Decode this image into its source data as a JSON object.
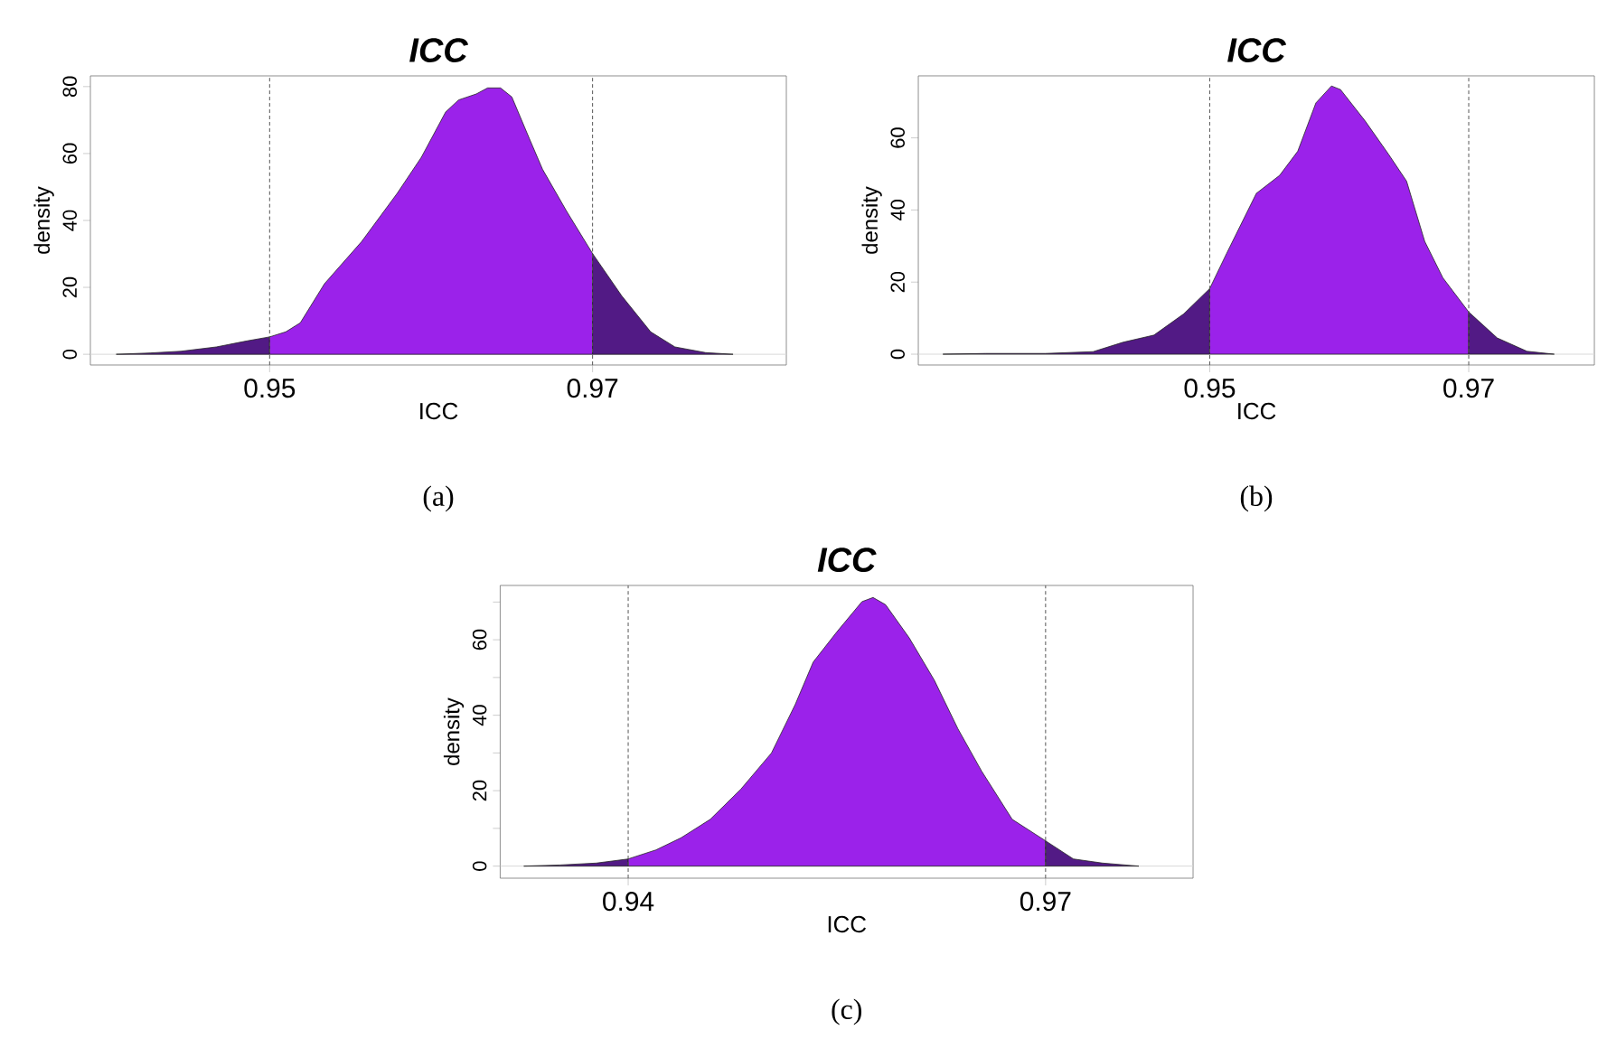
{
  "chart_data": [
    {
      "type": "area",
      "title": "ICC",
      "xlabel": "ICC",
      "ylabel": "density",
      "xlim": [
        0.9389,
        0.982
      ],
      "ylim": [
        -3.2,
        83.2
      ],
      "xticks": [
        0.95,
        0.97
      ],
      "yticks": [
        0,
        20,
        40,
        60,
        80
      ],
      "series": [
        {
          "color": "#521a85",
          "x": [
            0.9405,
            0.9426,
            0.9445,
            0.9467,
            0.9486,
            0.95
          ],
          "values": [
            0,
            0.4,
            0.9,
            2.2,
            4.0,
            5.2
          ]
        },
        {
          "color": "#9b22ea",
          "x": [
            0.95,
            0.951,
            0.9519,
            0.9534,
            0.9557,
            0.9579,
            0.9594,
            0.9609,
            0.9617,
            0.9628,
            0.9635,
            0.9643,
            0.965,
            0.9661,
            0.9669,
            0.9684,
            0.97
          ],
          "values": [
            5.2,
            6.7,
            9.4,
            21.1,
            33.7,
            48.1,
            58.9,
            72.4,
            76.0,
            77.8,
            79.6,
            79.6,
            76.9,
            64.3,
            55.3,
            42.7,
            30.1
          ]
        },
        {
          "color": "#521a85",
          "x": [
            0.97,
            0.9718,
            0.9736,
            0.9751,
            0.977,
            0.9787
          ],
          "values": [
            30.1,
            17.5,
            6.7,
            2.2,
            0.5,
            0
          ]
        }
      ],
      "ref_lines": [
        {
          "axis": "y",
          "value": 0,
          "color": "#d9d9d9"
        },
        {
          "axis": "x",
          "value": 0.95,
          "color": "#555555",
          "line_style": "dashed"
        },
        {
          "axis": "x",
          "value": 0.97,
          "color": "#555555",
          "line_style": "dashed"
        }
      ],
      "annotations": [
        "(a)"
      ]
    },
    {
      "type": "area",
      "title": "ICC",
      "xlabel": "ICC",
      "ylabel": "density",
      "xlim": [
        0.9275,
        0.9797
      ],
      "ylim": [
        -3.0,
        77.2
      ],
      "xticks": [
        0.95,
        0.97
      ],
      "yticks": [
        0,
        20,
        40,
        60
      ],
      "series": [
        {
          "color": "#521a85",
          "x": [
            0.9294,
            0.9327,
            0.9373,
            0.941,
            0.9433,
            0.9457,
            0.948,
            0.95
          ],
          "values": [
            0,
            0.2,
            0.2,
            0.7,
            3.3,
            5.3,
            11.2,
            18.2
          ]
        },
        {
          "color": "#9b22ea",
          "x": [
            0.95,
            0.9513,
            0.9536,
            0.9554,
            0.9568,
            0.9582,
            0.9594,
            0.9601,
            0.962,
            0.9638,
            0.9652,
            0.9666,
            0.968,
            0.97
          ],
          "values": [
            18.2,
            27.9,
            44.6,
            49.6,
            56.3,
            69.7,
            74.4,
            73.4,
            64.7,
            55.5,
            48.0,
            31.3,
            21.2,
            11.7
          ]
        },
        {
          "color": "#521a85",
          "x": [
            0.97,
            0.9722,
            0.9745,
            0.9766
          ],
          "values": [
            11.7,
            4.5,
            0.8,
            0
          ]
        }
      ],
      "ref_lines": [
        {
          "axis": "y",
          "value": 0,
          "color": "#d9d9d9"
        },
        {
          "axis": "x",
          "value": 0.95,
          "color": "#555555",
          "line_style": "dashed"
        },
        {
          "axis": "x",
          "value": 0.97,
          "color": "#555555",
          "line_style": "dashed"
        }
      ],
      "annotations": [
        "(b)"
      ]
    },
    {
      "type": "area",
      "title": "ICC",
      "xlabel": "ICC",
      "ylabel": "density",
      "xlim": [
        0.9308,
        0.9806
      ],
      "ylim": [
        -3.2,
        74.4
      ],
      "xticks": [
        0.94,
        0.97
      ],
      "yticks": [
        0,
        {
          "value": 10,
          "label": null
        },
        20,
        {
          "value": 30,
          "label": null
        },
        40,
        {
          "value": 50,
          "label": null
        },
        60,
        {
          "value": 70,
          "label": null
        }
      ],
      "series": [
        {
          "color": "#521a85",
          "x": [
            0.9325,
            0.9351,
            0.9377,
            0.94
          ],
          "values": [
            0,
            0.3,
            0.8,
            1.9
          ]
        },
        {
          "color": "#9b22ea",
          "x": [
            0.94,
            0.942,
            0.9438,
            0.9459,
            0.9481,
            0.9503,
            0.952,
            0.9533,
            0.955,
            0.9568,
            0.9576,
            0.9585,
            0.9602,
            0.962,
            0.9637,
            0.9654,
            0.9676,
            0.97
          ],
          "values": [
            1.9,
            4.3,
            7.5,
            12.4,
            20.4,
            30.0,
            42.8,
            54.1,
            62.1,
            70.1,
            71.2,
            69.3,
            60.5,
            49.3,
            36.4,
            25.2,
            12.4,
            6.7
          ]
        },
        {
          "color": "#521a85",
          "x": [
            0.97,
            0.972,
            0.9741,
            0.9767
          ],
          "values": [
            6.7,
            1.9,
            0.8,
            0
          ]
        }
      ],
      "ref_lines": [
        {
          "axis": "y",
          "value": 0,
          "color": "#d9d9d9"
        },
        {
          "axis": "x",
          "value": 0.94,
          "color": "#555555",
          "line_style": "dashed"
        },
        {
          "axis": "x",
          "value": 0.97,
          "color": "#555555",
          "line_style": "dashed"
        }
      ],
      "annotations": [
        "(c)"
      ]
    }
  ]
}
